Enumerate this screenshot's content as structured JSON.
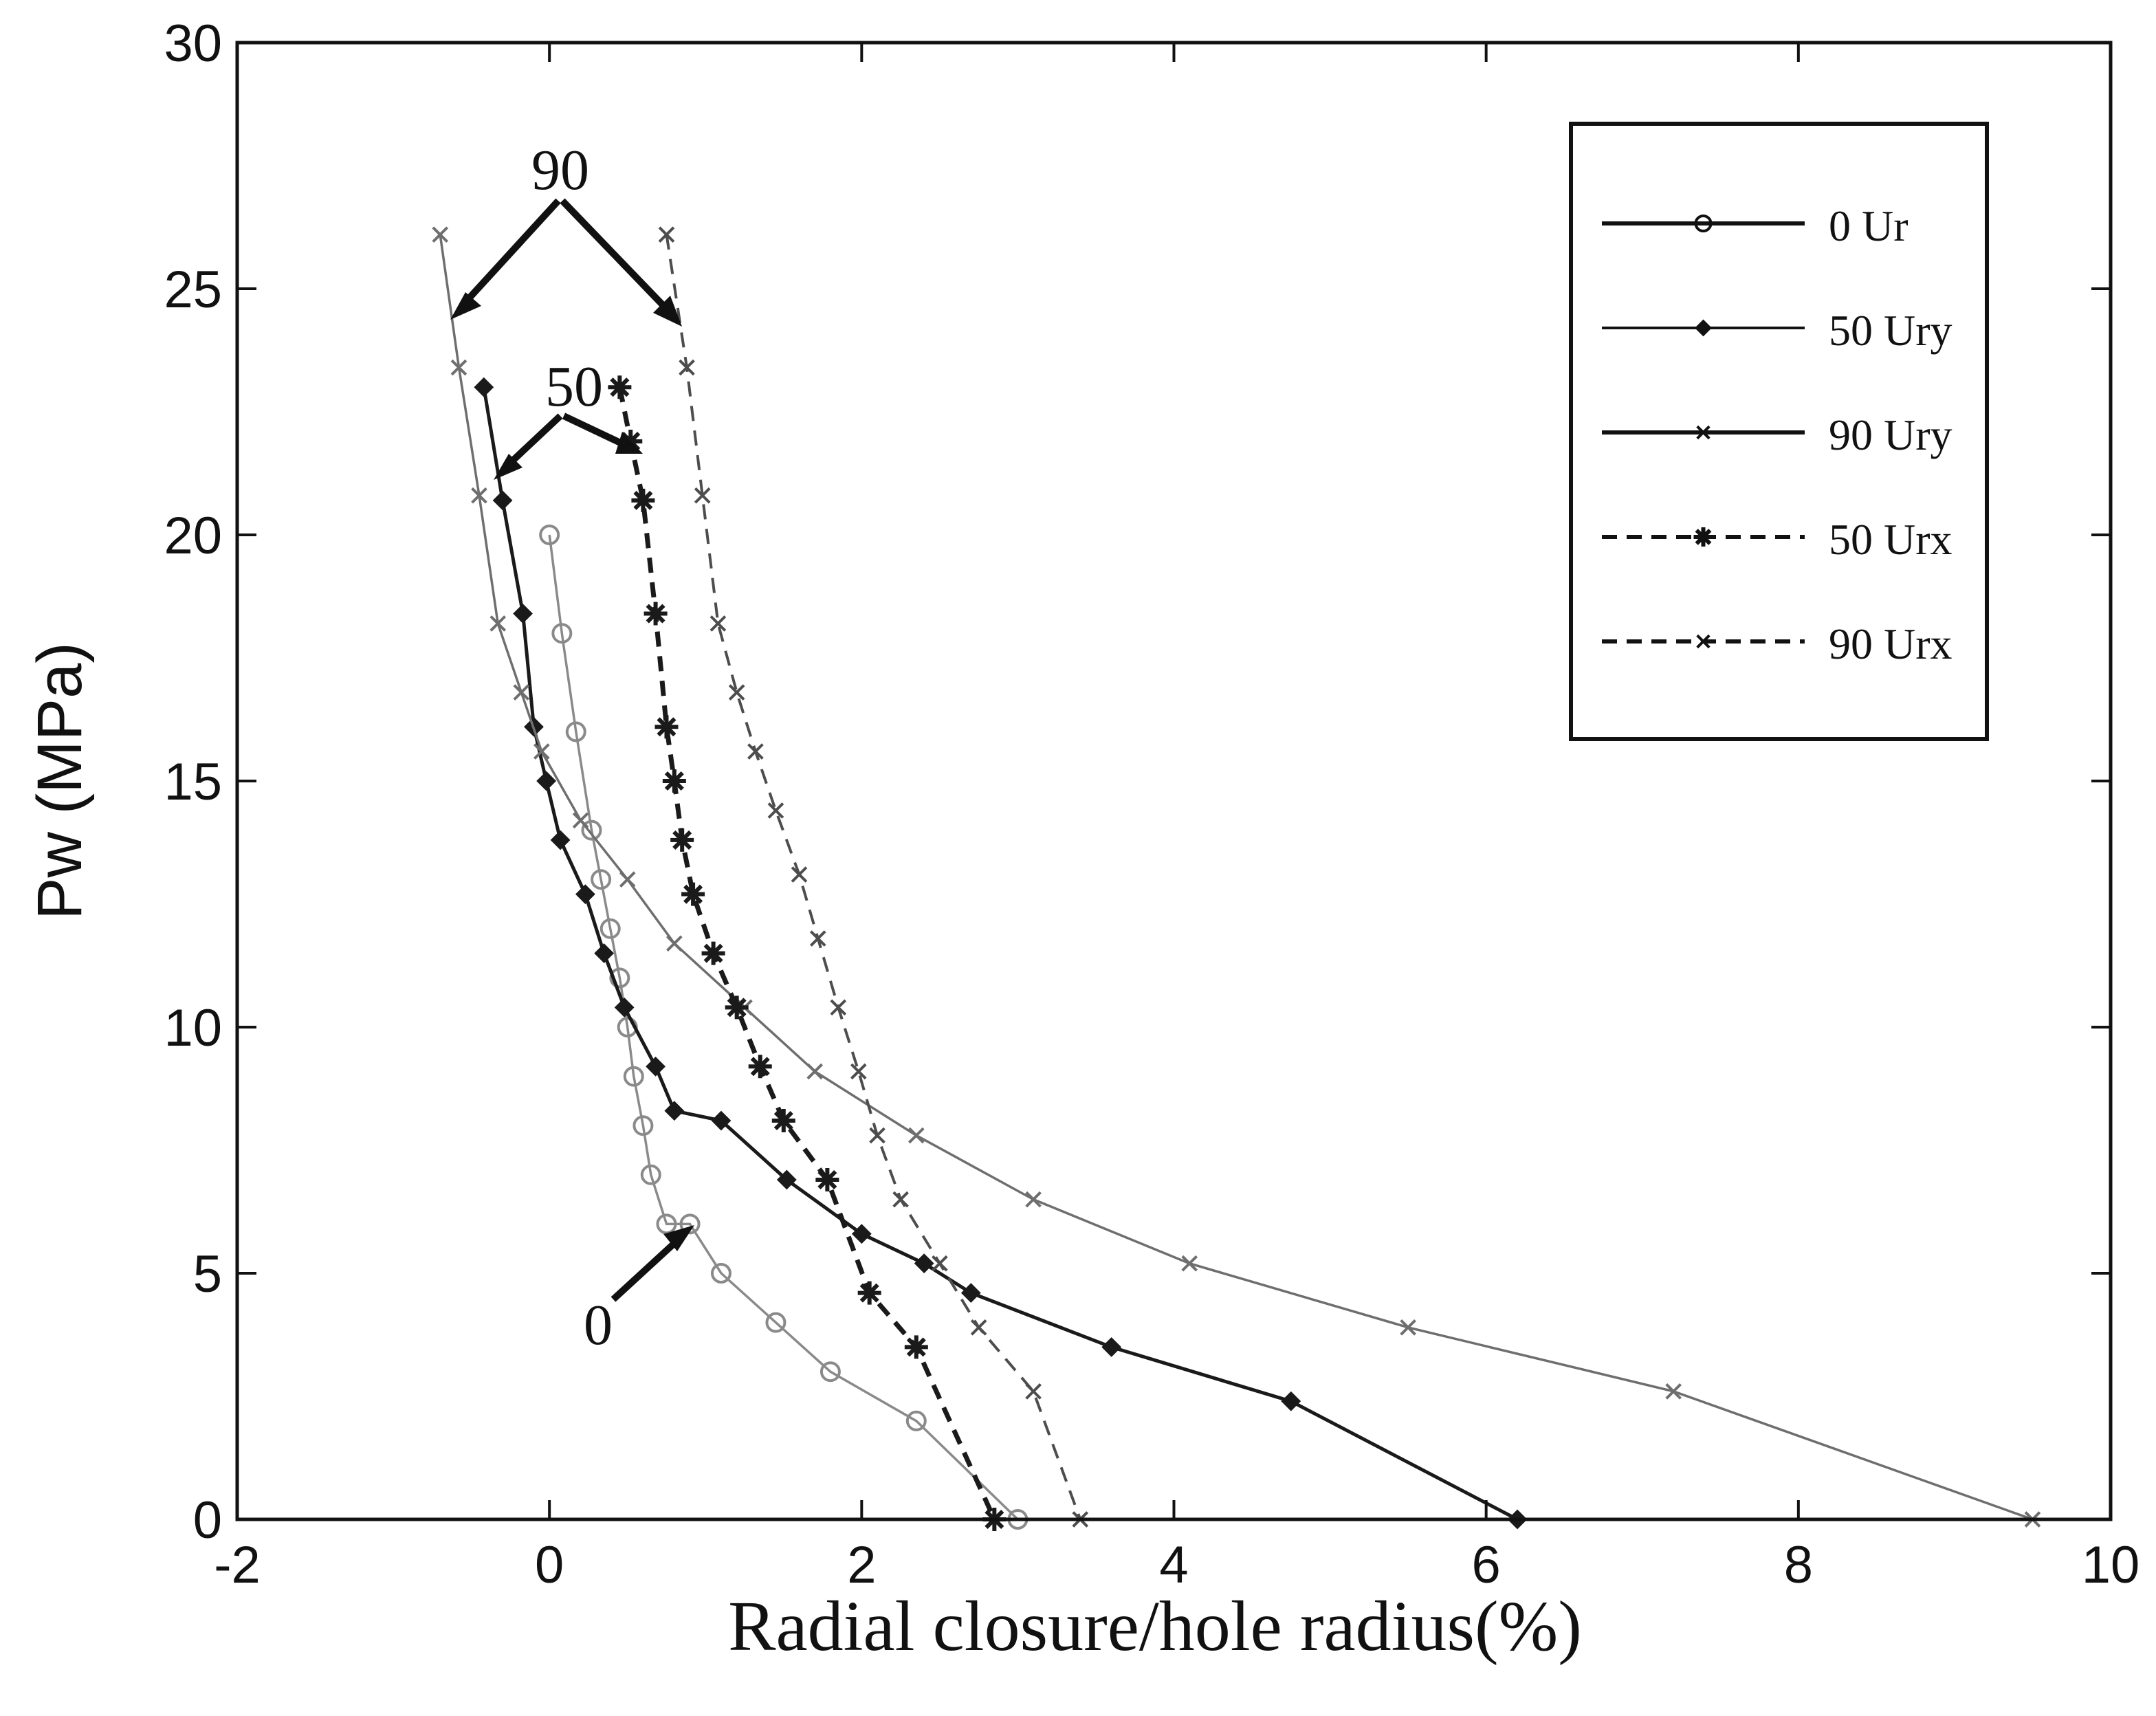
{
  "chart_data": {
    "type": "line",
    "title": "",
    "xlabel": "Radial closure/hole radius(%)",
    "ylabel": "Pw (MPa)",
    "xlim": [
      -2,
      10
    ],
    "ylim": [
      0,
      30
    ],
    "x_ticks": [
      -2,
      0,
      2,
      4,
      6,
      8,
      10
    ],
    "y_ticks": [
      0,
      5,
      10,
      15,
      20,
      25,
      30
    ],
    "grid": false,
    "legend_position": "top-right",
    "series": [
      {
        "name": "0  Ur",
        "style": "solid",
        "marker": "circle",
        "color": "#8a8a8a",
        "x": [
          0.0,
          0.08,
          0.17,
          0.27,
          0.33,
          0.39,
          0.45,
          0.5,
          0.54,
          0.6,
          0.65,
          0.75,
          0.9,
          1.1,
          1.45,
          1.8,
          2.35,
          3.0
        ],
        "y": [
          20,
          18,
          16,
          14,
          13,
          12,
          11,
          10,
          9,
          8,
          7,
          6,
          6,
          5,
          4,
          3,
          2,
          0
        ]
      },
      {
        "name": "50 Ury",
        "style": "solid",
        "marker": "diamond",
        "color": "#1a1a1a",
        "x": [
          -0.42,
          -0.3,
          -0.17,
          -0.1,
          -0.02,
          0.07,
          0.23,
          0.35,
          0.48,
          0.68,
          0.8,
          1.1,
          1.52,
          2.0,
          2.4,
          2.7,
          3.6,
          4.75,
          6.2
        ],
        "y": [
          23,
          20.7,
          18.4,
          16.1,
          15,
          13.8,
          12.7,
          11.5,
          10.4,
          9.2,
          8.3,
          8.1,
          6.9,
          5.8,
          5.2,
          4.6,
          3.5,
          2.4,
          0
        ]
      },
      {
        "name": "90 Ury",
        "style": "solid",
        "marker": "x",
        "color": "#6e6e6e",
        "x": [
          -0.7,
          -0.58,
          -0.45,
          -0.33,
          -0.18,
          -0.05,
          0.2,
          0.5,
          0.8,
          1.25,
          1.7,
          2.35,
          3.1,
          4.1,
          5.5,
          7.2,
          9.5
        ],
        "y": [
          26.1,
          23.4,
          20.8,
          18.2,
          16.8,
          15.6,
          14.2,
          13,
          11.7,
          10.4,
          9.1,
          7.8,
          6.5,
          5.2,
          3.9,
          2.6,
          0
        ]
      },
      {
        "name": "50 Urx",
        "style": "dashed",
        "marker": "star",
        "color": "#1a1a1a",
        "x": [
          0.45,
          0.52,
          0.6,
          0.68,
          0.75,
          0.8,
          0.85,
          0.92,
          1.05,
          1.2,
          1.35,
          1.5,
          1.78,
          2.05,
          2.35,
          2.85
        ],
        "y": [
          23,
          21.9,
          20.7,
          18.4,
          16.1,
          15,
          13.8,
          12.7,
          11.5,
          10.4,
          9.2,
          8.1,
          6.9,
          4.6,
          3.5,
          0
        ]
      },
      {
        "name": "90 Urx",
        "style": "dashed",
        "marker": "x",
        "color": "#4d4d4d",
        "x": [
          0.75,
          0.88,
          0.98,
          1.08,
          1.2,
          1.32,
          1.45,
          1.6,
          1.72,
          1.85,
          1.98,
          2.1,
          2.25,
          2.5,
          2.75,
          3.1,
          3.4
        ],
        "y": [
          26.1,
          23.4,
          20.8,
          18.2,
          16.8,
          15.6,
          14.4,
          13.1,
          11.8,
          10.4,
          9.1,
          7.8,
          6.5,
          5.2,
          3.9,
          2.6,
          0
        ]
      }
    ],
    "annotations": [
      {
        "text": "90"
      },
      {
        "text": "50"
      },
      {
        "text": "0"
      }
    ]
  }
}
